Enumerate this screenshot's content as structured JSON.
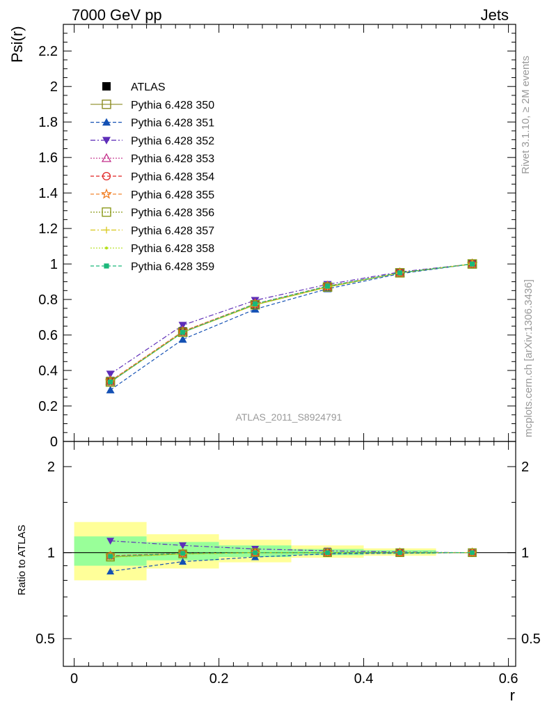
{
  "header": {
    "process": "7000 GeV pp",
    "category": "Jets",
    "watermark": "ATLAS_2011_S8924791",
    "side_top": "Rivet 3.1.10, ≥ 2M events",
    "side_bottom": "mcplots.cern.ch [arXiv:1306.3436]"
  },
  "colors": {
    "atlas": "#000000",
    "band_outer": "#ffff99",
    "band_inner": "#99ff99"
  },
  "chart_data": [
    {
      "type": "line",
      "panel": "main",
      "ylabel": "Psi(r)",
      "ylim": [
        0,
        2.35
      ],
      "xlim": [
        -0.015,
        0.61
      ],
      "yticks": [
        0,
        0.2,
        0.4,
        0.6,
        0.8,
        1,
        1.2,
        1.4,
        1.6,
        1.8,
        2,
        2.2
      ],
      "ytick_labels": [
        "0",
        "0.2",
        "0.4",
        "0.6",
        "0.8",
        "1",
        "1.2",
        "1.4",
        "1.6",
        "1.8",
        "2",
        "2.2"
      ],
      "x": [
        0.05,
        0.15,
        0.25,
        0.35,
        0.45,
        0.55
      ],
      "legend_position": "top-left",
      "series": [
        {
          "name": "ATLAS",
          "color": "#000000",
          "marker": "square-filled",
          "dash": "none",
          "values": [
            0.34,
            0.62,
            0.77,
            0.87,
            0.95,
            1.0
          ]
        },
        {
          "name": "Pythia 6.428 350",
          "color": "#8b8b22",
          "marker": "square-open",
          "dash": "solid",
          "values": [
            0.335,
            0.615,
            0.77,
            0.87,
            0.95,
            1.0
          ]
        },
        {
          "name": "Pythia 6.428 351",
          "color": "#1451b4",
          "marker": "triangle-up-filled",
          "dash": "dash",
          "values": [
            0.29,
            0.575,
            0.745,
            0.86,
            0.945,
            1.0
          ]
        },
        {
          "name": "Pythia 6.428 352",
          "color": "#5e2db8",
          "marker": "triangle-down-filled",
          "dash": "dashdot",
          "values": [
            0.38,
            0.655,
            0.795,
            0.885,
            0.955,
            1.0
          ]
        },
        {
          "name": "Pythia 6.428 353",
          "color": "#c42f8a",
          "marker": "triangle-up-open",
          "dash": "dot",
          "values": [
            0.34,
            0.62,
            0.775,
            0.875,
            0.95,
            1.0
          ]
        },
        {
          "name": "Pythia 6.428 354",
          "color": "#e02020",
          "marker": "circle-open",
          "dash": "dash",
          "values": [
            0.34,
            0.62,
            0.775,
            0.875,
            0.95,
            1.0
          ]
        },
        {
          "name": "Pythia 6.428 355",
          "color": "#f07818",
          "marker": "star-open",
          "dash": "dash",
          "values": [
            0.34,
            0.62,
            0.775,
            0.875,
            0.95,
            1.0
          ]
        },
        {
          "name": "Pythia 6.428 356",
          "color": "#8b9a1a",
          "marker": "square-open",
          "dash": "dot",
          "values": [
            0.335,
            0.615,
            0.77,
            0.87,
            0.95,
            1.0
          ]
        },
        {
          "name": "Pythia 6.428 357",
          "color": "#d8c81a",
          "marker": "cross",
          "dash": "dashdot",
          "values": [
            0.335,
            0.615,
            0.77,
            0.87,
            0.95,
            1.0
          ]
        },
        {
          "name": "Pythia 6.428 358",
          "color": "#b4e01a",
          "marker": "dot",
          "dash": "dot",
          "values": [
            0.335,
            0.615,
            0.77,
            0.87,
            0.95,
            1.0
          ]
        },
        {
          "name": "Pythia 6.428 359",
          "color": "#1ab87a",
          "marker": "square-small-filled",
          "dash": "dash",
          "values": [
            0.335,
            0.615,
            0.775,
            0.875,
            0.95,
            1.0
          ]
        }
      ]
    },
    {
      "type": "line",
      "panel": "ratio",
      "ylabel": "Ratio to ATLAS",
      "xlabel": "r",
      "scale": "log",
      "ylim": [
        0.4,
        2.45
      ],
      "xlim": [
        -0.015,
        0.61
      ],
      "yticks": [
        0.5,
        1,
        2
      ],
      "ytick_labels": [
        "0.5",
        "1",
        "2"
      ],
      "xticks": [
        0,
        0.2,
        0.4,
        0.6
      ],
      "xtick_labels": [
        "0",
        "0.2",
        "0.4",
        "0.6"
      ],
      "x": [
        0.05,
        0.15,
        0.25,
        0.35,
        0.45,
        0.55
      ],
      "bins": [
        [
          0.0,
          0.1
        ],
        [
          0.1,
          0.2
        ],
        [
          0.2,
          0.3
        ],
        [
          0.3,
          0.4
        ],
        [
          0.4,
          0.5
        ],
        [
          0.5,
          0.6
        ]
      ],
      "band_outer": [
        [
          0.8,
          1.28
        ],
        [
          0.88,
          1.16
        ],
        [
          0.925,
          1.11
        ],
        [
          0.96,
          1.06
        ],
        [
          0.975,
          1.035
        ],
        [
          1.0,
          1.0
        ]
      ],
      "band_inner": [
        [
          0.9,
          1.14
        ],
        [
          0.94,
          1.09
        ],
        [
          0.965,
          1.06
        ],
        [
          0.98,
          1.03
        ],
        [
          0.99,
          1.02
        ],
        [
          1.0,
          1.0
        ]
      ],
      "series": [
        {
          "name": "Pythia 6.428 350",
          "values": [
            0.965,
            0.99,
            1.0,
            1.0,
            1.0,
            1.0
          ]
        },
        {
          "name": "Pythia 6.428 351",
          "values": [
            0.86,
            0.93,
            0.965,
            0.99,
            0.995,
            1.0
          ]
        },
        {
          "name": "Pythia 6.428 352",
          "values": [
            1.1,
            1.06,
            1.03,
            1.015,
            1.005,
            1.0
          ]
        },
        {
          "name": "Pythia 6.428 353",
          "values": [
            0.975,
            0.995,
            1.0,
            1.0,
            1.0,
            1.0
          ]
        },
        {
          "name": "Pythia 6.428 354",
          "values": [
            0.975,
            0.995,
            1.0,
            1.0,
            1.0,
            1.0
          ]
        },
        {
          "name": "Pythia 6.428 355",
          "values": [
            0.975,
            0.995,
            1.0,
            1.0,
            1.0,
            1.0
          ]
        },
        {
          "name": "Pythia 6.428 356",
          "values": [
            0.965,
            0.99,
            1.0,
            1.0,
            1.0,
            1.0
          ]
        },
        {
          "name": "Pythia 6.428 357",
          "values": [
            0.965,
            0.99,
            1.0,
            1.0,
            1.0,
            1.0
          ]
        },
        {
          "name": "Pythia 6.428 358",
          "values": [
            0.965,
            0.99,
            1.0,
            1.0,
            1.0,
            1.0
          ]
        },
        {
          "name": "Pythia 6.428 359",
          "values": [
            0.97,
            0.995,
            1.0,
            1.0,
            1.0,
            1.0
          ]
        }
      ]
    }
  ]
}
